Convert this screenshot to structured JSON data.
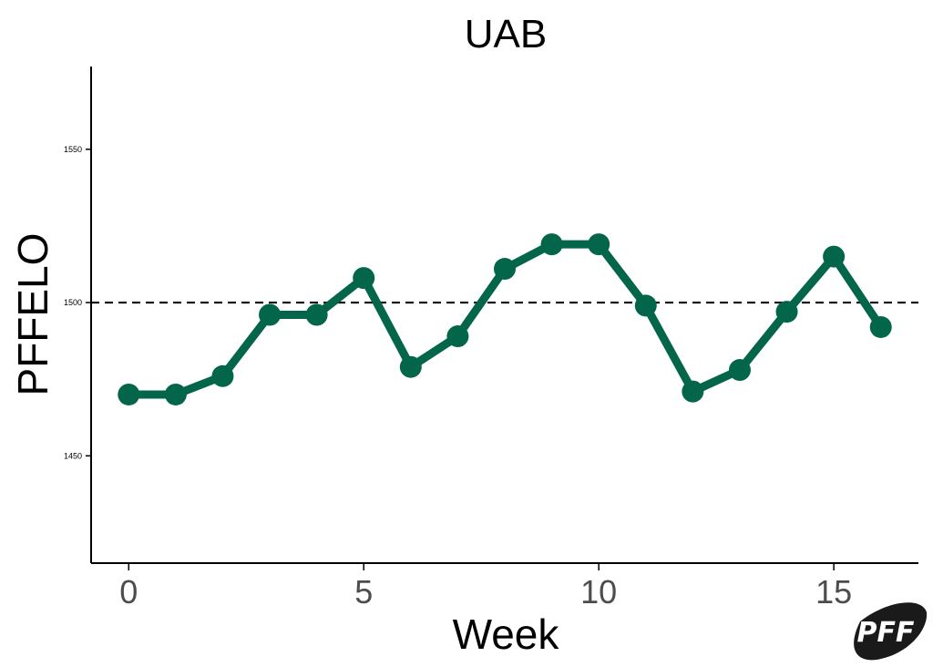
{
  "chart_data": {
    "type": "line",
    "title": "UAB",
    "xlabel": "Week",
    "ylabel": "PFFELO",
    "x": [
      0,
      1,
      2,
      3,
      4,
      5,
      6,
      7,
      8,
      9,
      10,
      11,
      12,
      13,
      14,
      15,
      16
    ],
    "series": [
      {
        "values": [
          1470,
          1470,
          1476,
          1496,
          1496,
          1508,
          1479,
          1489,
          1511,
          1519,
          1519,
          1499,
          1471,
          1478,
          1497,
          1515,
          1492
        ],
        "color": "#03664a"
      }
    ],
    "reference_line": {
      "y": 1500,
      "style": "dashed",
      "color": "#000000"
    },
    "xticks": [
      "0",
      "5",
      "10",
      "15"
    ],
    "yticks": [
      "1450",
      "1500",
      "1550"
    ],
    "xlim": [
      -0.8,
      16.8
    ],
    "ylim": [
      1415,
      1577
    ],
    "grid": false,
    "legend": "none"
  },
  "logo": {
    "text": "PFF",
    "name": "pff-logo"
  }
}
